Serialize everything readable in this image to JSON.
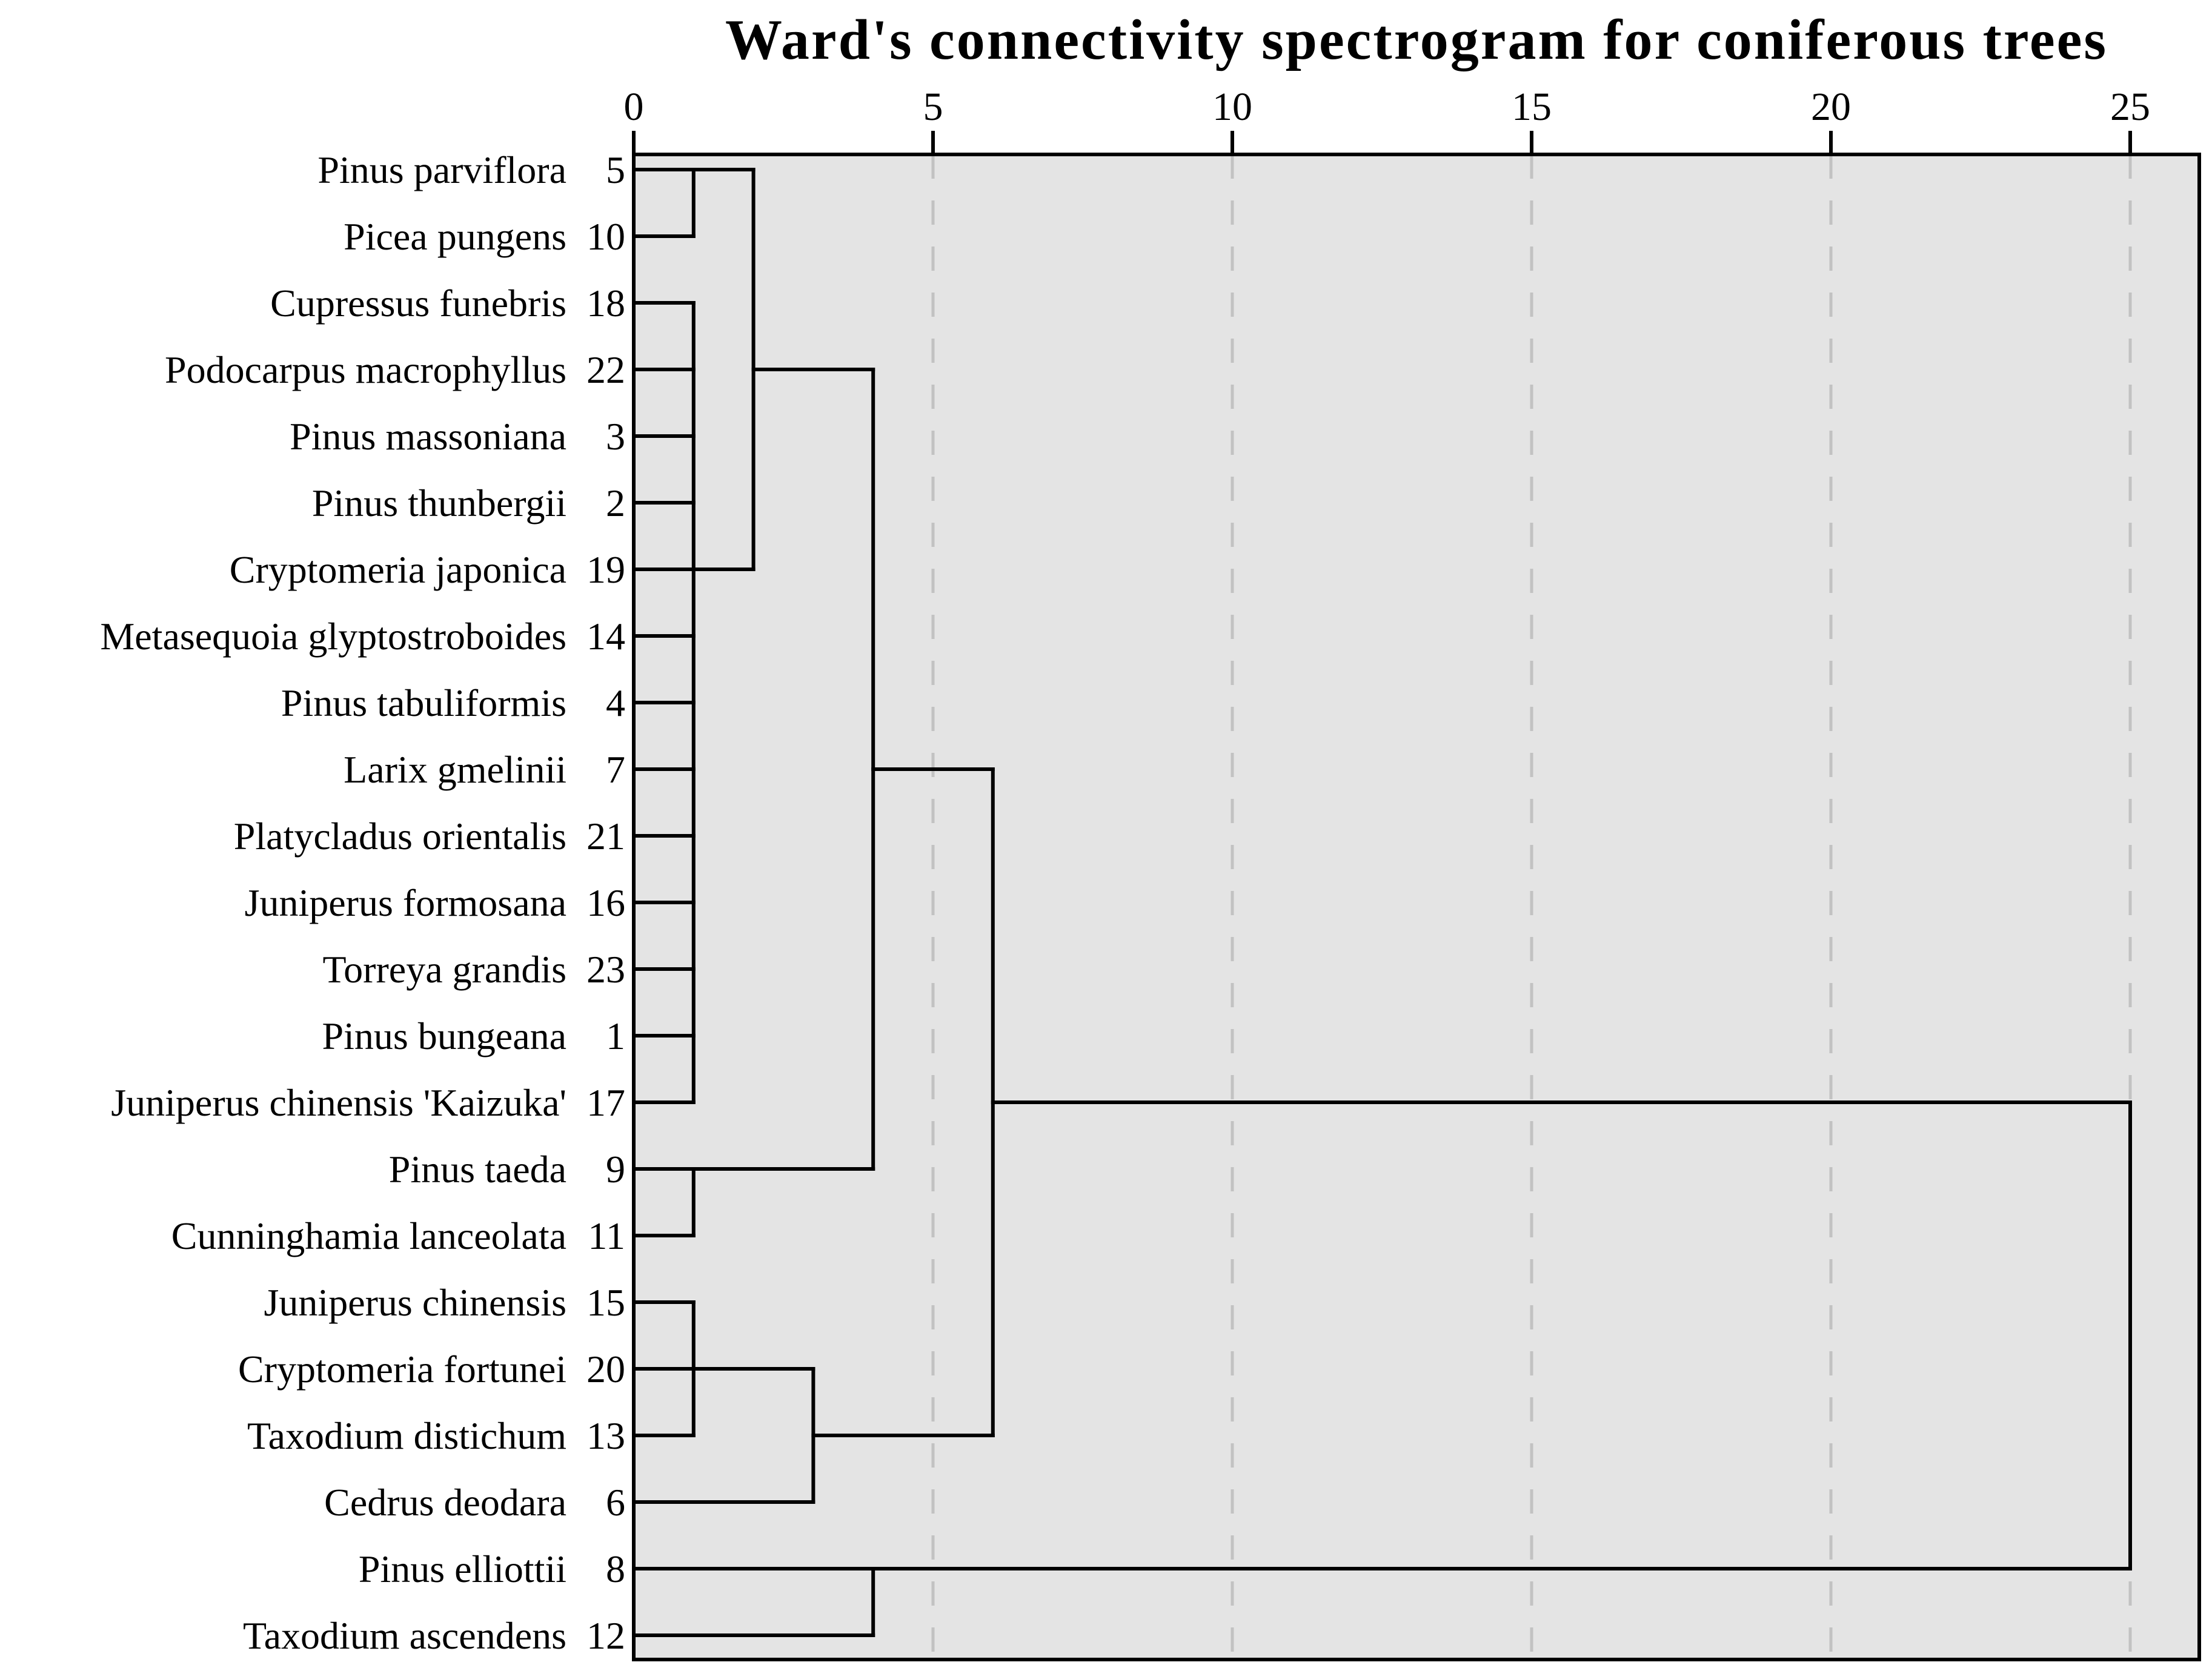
{
  "figure": {
    "background": "#ffffff",
    "panel_color": "#e4e4e4",
    "line_color": "#000000",
    "grid_color": "#c2c2c2"
  },
  "chart_data": {
    "type": "dendrogram",
    "orientation": "horizontal, axis on top, leaves on left",
    "title": "Ward's connectivity spectrogram for coniferous trees",
    "xlabel": "",
    "ylabel": "",
    "axis": {
      "position": "top",
      "ticks": [
        0,
        5,
        10,
        15,
        20,
        25
      ],
      "range": [
        0,
        26.1
      ],
      "gridlines": [
        5,
        10,
        15,
        20,
        25
      ],
      "grid_style": "dashed",
      "grid_on": true
    },
    "leaves": [
      {
        "row": 1,
        "species": "Pinus parviflora",
        "id": "5"
      },
      {
        "row": 2,
        "species": "Picea pungens",
        "id": "10"
      },
      {
        "row": 3,
        "species": "Cupressus funebris",
        "id": "18"
      },
      {
        "row": 4,
        "species": "Podocarpus macrophyllus",
        "id": "22"
      },
      {
        "row": 5,
        "species": "Pinus massoniana",
        "id": "3"
      },
      {
        "row": 6,
        "species": "Pinus thunbergii",
        "id": "2"
      },
      {
        "row": 7,
        "species": "Cryptomeria japonica",
        "id": "19"
      },
      {
        "row": 8,
        "species": "Metasequoia glyptostroboides",
        "id": "14"
      },
      {
        "row": 9,
        "species": "Pinus tabuliformis",
        "id": "4"
      },
      {
        "row": 10,
        "species": "Larix gmelinii",
        "id": "7"
      },
      {
        "row": 11,
        "species": "Platycladus orientalis",
        "id": "21"
      },
      {
        "row": 12,
        "species": "Juniperus formosana",
        "id": "16"
      },
      {
        "row": 13,
        "species": "Torreya grandis",
        "id": "23"
      },
      {
        "row": 14,
        "species": "Pinus bungeana",
        "id": "1"
      },
      {
        "row": 15,
        "species": "Juniperus chinensis 'Kaizuka'",
        "id": "17"
      },
      {
        "row": 16,
        "species": "Pinus taeda",
        "id": "9"
      },
      {
        "row": 17,
        "species": "Cunninghamia lanceolata",
        "id": "11"
      },
      {
        "row": 18,
        "species": "Juniperus chinensis",
        "id": "15"
      },
      {
        "row": 19,
        "species": "Cryptomeria fortunei",
        "id": "20"
      },
      {
        "row": 20,
        "species": "Taxodium distichum",
        "id": "13"
      },
      {
        "row": 21,
        "species": "Cedrus deodara",
        "id": "6"
      },
      {
        "row": 22,
        "species": "Pinus elliottii",
        "id": "8"
      },
      {
        "row": 23,
        "species": "Taxodium ascendens",
        "id": "12"
      }
    ],
    "merges": [
      {
        "clusters": "Pinus parviflora + Picea pungens (rows 1-2)",
        "distance": 1
      },
      {
        "clusters": "13-species tie cluster (rows 3-15)",
        "distance": 1
      },
      {
        "clusters": "Pinus taeda + Cunninghamia lanceolata (rows 16-17)",
        "distance": 1
      },
      {
        "clusters": "Juniperus chinensis + Cryptomeria fortunei + Taxodium distichum (rows 18-20)",
        "distance": 1
      },
      {
        "clusters": "{rows 1-2} + {rows 3-15}",
        "distance": 2
      },
      {
        "clusters": "{rows 18-20} + Cedrus deodara",
        "distance": 3
      },
      {
        "clusters": "{rows 1-15} + {rows 16-17}",
        "distance": 4
      },
      {
        "clusters": "Pinus elliottii + Taxodium ascendens (rows 22-23)",
        "distance": 4
      },
      {
        "clusters": "{rows 1-17} + {rows 18-21}",
        "distance": 6
      },
      {
        "clusters": "{rows 1-21} + {rows 22-23} (root)",
        "distance": 25
      }
    ],
    "links": {
      "horizontal": [
        {
          "row": 1,
          "d0": 0,
          "d1": 1
        },
        {
          "row": 2,
          "d0": 0,
          "d1": 1
        },
        {
          "row": 3,
          "d0": 0,
          "d1": 1
        },
        {
          "row": 4,
          "d0": 0,
          "d1": 1
        },
        {
          "row": 5,
          "d0": 0,
          "d1": 1
        },
        {
          "row": 6,
          "d0": 0,
          "d1": 1
        },
        {
          "row": 7,
          "d0": 0,
          "d1": 1
        },
        {
          "row": 8,
          "d0": 0,
          "d1": 1
        },
        {
          "row": 9,
          "d0": 0,
          "d1": 1
        },
        {
          "row": 10,
          "d0": 0,
          "d1": 1
        },
        {
          "row": 11,
          "d0": 0,
          "d1": 1
        },
        {
          "row": 12,
          "d0": 0,
          "d1": 1
        },
        {
          "row": 13,
          "d0": 0,
          "d1": 1
        },
        {
          "row": 14,
          "d0": 0,
          "d1": 1
        },
        {
          "row": 15,
          "d0": 0,
          "d1": 1
        },
        {
          "row": 16,
          "d0": 0,
          "d1": 1
        },
        {
          "row": 17,
          "d0": 0,
          "d1": 1
        },
        {
          "row": 18,
          "d0": 0,
          "d1": 1
        },
        {
          "row": 19,
          "d0": 0,
          "d1": 1
        },
        {
          "row": 20,
          "d0": 0,
          "d1": 1
        },
        {
          "row": 21,
          "d0": 0,
          "d1": 3
        },
        {
          "row": 22,
          "d0": 0,
          "d1": 4
        },
        {
          "row": 23,
          "d0": 0,
          "d1": 4
        },
        {
          "row": 1,
          "d0": 1,
          "d1": 2
        },
        {
          "row": 7,
          "d0": 1,
          "d1": 2
        },
        {
          "row": 4,
          "d0": 2,
          "d1": 4
        },
        {
          "row": 16,
          "d0": 1,
          "d1": 4
        },
        {
          "row": 10,
          "d0": 4,
          "d1": 6
        },
        {
          "row": 19,
          "d0": 1,
          "d1": 3
        },
        {
          "row": 20,
          "d0": 3,
          "d1": 6
        },
        {
          "row": 15,
          "d0": 6,
          "d1": 25
        },
        {
          "row": 22,
          "d0": 4,
          "d1": 25
        }
      ],
      "vertical": [
        {
          "d": 1,
          "row0": 1,
          "row1": 2
        },
        {
          "d": 1,
          "row0": 3,
          "row1": 15
        },
        {
          "d": 2,
          "row0": 1,
          "row1": 7
        },
        {
          "d": 1,
          "row0": 16,
          "row1": 17
        },
        {
          "d": 4,
          "row0": 4,
          "row1": 16
        },
        {
          "d": 1,
          "row0": 18,
          "row1": 20
        },
        {
          "d": 3,
          "row0": 19,
          "row1": 21
        },
        {
          "d": 6,
          "row0": 10,
          "row1": 20
        },
        {
          "d": 4,
          "row0": 22,
          "row1": 23
        },
        {
          "d": 25,
          "row0": 15,
          "row1": 22
        }
      ]
    }
  }
}
